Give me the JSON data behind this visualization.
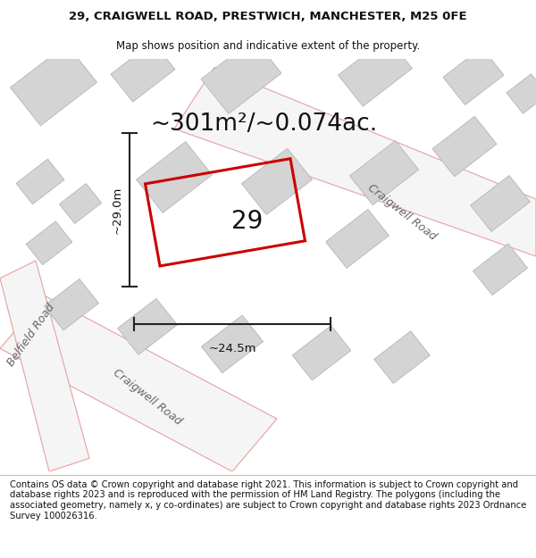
{
  "title_line1": "29, CRAIGWELL ROAD, PRESTWICH, MANCHESTER, M25 0FE",
  "title_line2": "Map shows position and indicative extent of the property.",
  "area_text": "~301m²/~0.074ac.",
  "dim_height": "~29.0m",
  "dim_width": "~24.5m",
  "property_number": "29",
  "road_label_upper": "Craigwell Road",
  "road_label_lower": "Craigwell Road",
  "road_label_left": "Belfield Road",
  "footer_text": "Contains OS data © Crown copyright and database right 2021. This information is subject to Crown copyright and database rights 2023 and is reproduced with the permission of HM Land Registry. The polygons (including the associated geometry, namely x, y co-ordinates) are subject to Crown copyright and database rights 2023 Ordnance Survey 100026316.",
  "map_bg": "#ececec",
  "building_color": "#d4d4d4",
  "building_edge": "#bbbbbb",
  "road_fill": "#f5f5f5",
  "road_edge_color": "#e8a0a0",
  "property_outline_color": "#cc0000",
  "dim_line_color": "#222222",
  "title_fontsize": 9.5,
  "subtitle_fontsize": 8.5,
  "area_fontsize": 19,
  "number_fontsize": 20,
  "road_label_fontsize": 9,
  "footer_fontsize": 7.2
}
